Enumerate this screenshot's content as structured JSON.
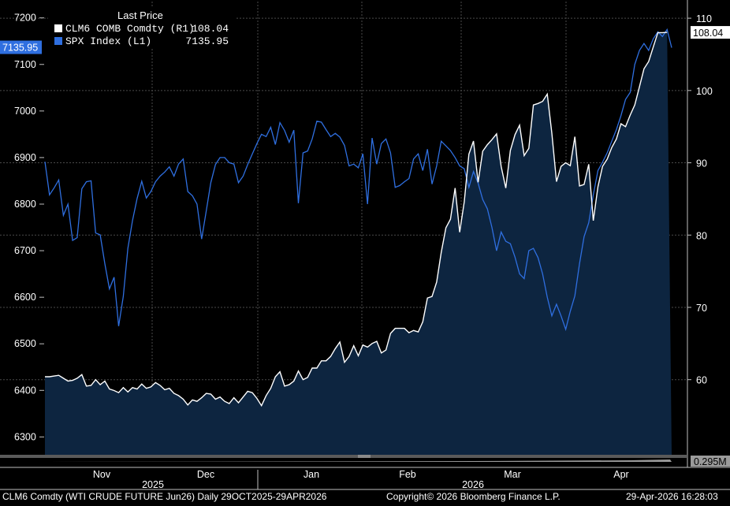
{
  "colors": {
    "background": "#000000",
    "spx": "#2f6fe0",
    "clm6": "#ffffff",
    "area_fill": "#0d2540",
    "grid": "#4a4a4a"
  },
  "legend": {
    "title": "Last Price",
    "series": [
      {
        "label": "CLM6 COMB Comdty  (R1)",
        "value": "108.04",
        "color": "#ffffff"
      },
      {
        "label": "SPX Index  (L1)",
        "value": "7135.95",
        "color": "#2f6fe0"
      }
    ]
  },
  "badges": {
    "left": "7135.95",
    "right": "108.04",
    "lower_panel": "0.295M"
  },
  "footer": {
    "left": "CLM6 Comdty (WTI CRUDE FUTURE  Jun26) Daily 29OCT2025-29APR2026",
    "center": "Copyright© 2026 Bloomberg Finance L.P.",
    "right": "29-Apr-2026 16:28:03"
  },
  "chart_data": {
    "type": "line",
    "x_range": [
      "2025-10-29",
      "2026-04-29"
    ],
    "month_labels": [
      "Nov",
      "Dec",
      "Jan",
      "Feb",
      "Mar",
      "Apr"
    ],
    "year_labels": [
      "2025",
      "2026"
    ],
    "left_axis": {
      "label": "SPX Index (L1)",
      "ticks": [
        6300,
        6400,
        6500,
        6600,
        6700,
        6800,
        6900,
        7000,
        7100,
        7200
      ],
      "ylim": [
        6260,
        7235
      ]
    },
    "right_axis": {
      "label": "CLM6 COMB Comdty (R1)",
      "ticks": [
        60,
        70,
        80,
        90,
        100,
        110
      ],
      "ylim": [
        49.5,
        112.3
      ]
    },
    "grid": true,
    "legend_position": "top-left",
    "series": [
      {
        "name": "SPX Index",
        "axis": "left",
        "color": "#2f6fe0",
        "values": [
          6891,
          6820,
          6835,
          6852,
          6776,
          6800,
          6722,
          6728,
          6833,
          6848,
          6850,
          6738,
          6734,
          6672,
          6618,
          6643,
          6538,
          6602,
          6705,
          6765,
          6812,
          6849,
          6813,
          6827,
          6848,
          6860,
          6869,
          6880,
          6860,
          6886,
          6897,
          6827,
          6818,
          6800,
          6725,
          6785,
          6846,
          6885,
          6900,
          6900,
          6889,
          6886,
          6846,
          6860,
          6885,
          6908,
          6930,
          6950,
          6945,
          6965,
          6928,
          6975,
          6958,
          6933,
          6959,
          6802,
          6910,
          6914,
          6940,
          6978,
          6976,
          6960,
          6945,
          6952,
          6944,
          6926,
          6882,
          6886,
          6878,
          6908,
          6800,
          6942,
          6886,
          6930,
          6940,
          6910,
          6836,
          6840,
          6848,
          6855,
          6897,
          6908,
          6872,
          6918,
          6843,
          6882,
          6935,
          6925,
          6915,
          6900,
          6882,
          6876,
          6836,
          6870,
          6845,
          6810,
          6790,
          6750,
          6700,
          6740,
          6720,
          6715,
          6686,
          6650,
          6640,
          6700,
          6705,
          6685,
          6650,
          6600,
          6560,
          6585,
          6560,
          6531,
          6570,
          6603,
          6672,
          6730,
          6760,
          6820,
          6872,
          6890,
          6910,
          6935,
          6960,
          6990,
          7025,
          7040,
          7100,
          7130,
          7145,
          7130,
          7155,
          7170,
          7160,
          7175,
          7136
        ]
      },
      {
        "name": "CLM6 COMB Comdty",
        "axis": "right",
        "color": "#ffffff",
        "values": [
          60.4,
          60.4,
          60.5,
          60.6,
          60.2,
          59.8,
          59.9,
          60.2,
          60.7,
          59.1,
          59.2,
          60.0,
          59.3,
          59.8,
          58.7,
          58.5,
          58.2,
          58.9,
          58.3,
          58.9,
          58.7,
          59.4,
          58.8,
          59.0,
          59.6,
          59.2,
          58.6,
          58.8,
          58.1,
          57.8,
          57.3,
          56.5,
          57.2,
          57.0,
          57.5,
          58.1,
          58.0,
          57.3,
          57.6,
          57.0,
          56.7,
          57.5,
          56.8,
          57.6,
          58.4,
          58.2,
          57.4,
          56.4,
          57.8,
          58.8,
          60.4,
          61.1,
          59.1,
          59.3,
          59.8,
          61.2,
          60.0,
          60.3,
          61.6,
          61.6,
          62.6,
          62.6,
          63.2,
          64.3,
          65.2,
          62.4,
          63.2,
          64.7,
          63.3,
          64.8,
          64.5,
          65.0,
          65.3,
          63.7,
          64.1,
          66.4,
          67.1,
          67.1,
          67.1,
          66.5,
          66.8,
          66.6,
          68.0,
          71.3,
          71.5,
          73.5,
          77.6,
          81.0,
          82.2,
          86.5,
          80.4,
          84.6,
          91.2,
          93.0,
          87.3,
          91.6,
          92.5,
          93.2,
          94.0,
          89.5,
          86.5,
          91.7,
          93.9,
          95.2,
          91.0,
          92.0,
          98.0,
          98.2,
          98.5,
          99.5,
          94.1,
          87.4,
          89.5,
          90.0,
          89.6,
          93.6,
          86.8,
          87.0,
          89.8,
          82.0,
          86.7,
          89.5,
          90.5,
          92.1,
          93.3,
          95.4,
          95.0,
          96.6,
          98.0,
          100.5,
          103.0,
          104.0,
          106.0,
          108.0,
          108.0,
          108.04
        ]
      }
    ],
    "lower_panel": {
      "label": "0.295M"
    }
  }
}
